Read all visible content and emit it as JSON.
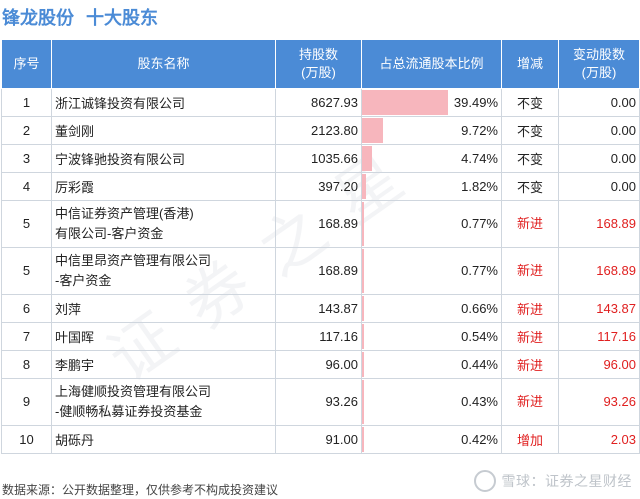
{
  "title": {
    "company": "锋龙股份",
    "section": "十大股东"
  },
  "colors": {
    "header_bg": "#4b8bd6",
    "bar": "#f7b6bd",
    "new_red": "#e02020"
  },
  "columns": [
    "序号",
    "股东名称",
    "持股数\n(万股)",
    "占总流通股本比例",
    "增减",
    "变动股数\n(万股)"
  ],
  "rows": [
    {
      "rank": "1",
      "name": "浙江诚锋投资有限公司",
      "shares": "8627.93",
      "pct": "39.49%",
      "pct_value": 39.49,
      "change": "不变",
      "delta": "0.00"
    },
    {
      "rank": "2",
      "name": "董剑刚",
      "shares": "2123.80",
      "pct": "9.72%",
      "pct_value": 9.72,
      "change": "不变",
      "delta": "0.00"
    },
    {
      "rank": "3",
      "name": "宁波锋驰投资有限公司",
      "shares": "1035.66",
      "pct": "4.74%",
      "pct_value": 4.74,
      "change": "不变",
      "delta": "0.00"
    },
    {
      "rank": "4",
      "name": "厉彩霞",
      "shares": "397.20",
      "pct": "1.82%",
      "pct_value": 1.82,
      "change": "不变",
      "delta": "0.00"
    },
    {
      "rank": "5",
      "name": "中信证券资产管理(香港)\n有限公司-客户资金",
      "shares": "168.89",
      "pct": "0.77%",
      "pct_value": 0.77,
      "change": "新进",
      "delta": "168.89"
    },
    {
      "rank": "5",
      "name": "中信里昂资产管理有限公司\n-客户资金",
      "shares": "168.89",
      "pct": "0.77%",
      "pct_value": 0.77,
      "change": "新进",
      "delta": "168.89"
    },
    {
      "rank": "6",
      "name": "刘萍",
      "shares": "143.87",
      "pct": "0.66%",
      "pct_value": 0.66,
      "change": "新进",
      "delta": "143.87"
    },
    {
      "rank": "7",
      "name": "叶国晖",
      "shares": "117.16",
      "pct": "0.54%",
      "pct_value": 0.54,
      "change": "新进",
      "delta": "117.16"
    },
    {
      "rank": "8",
      "name": "李鹏宇",
      "shares": "96.00",
      "pct": "0.44%",
      "pct_value": 0.44,
      "change": "新进",
      "delta": "96.00"
    },
    {
      "rank": "9",
      "name": "上海健顺投资管理有限公司\n-健顺畅私募证券投资基金",
      "shares": "93.26",
      "pct": "0.43%",
      "pct_value": 0.43,
      "change": "新进",
      "delta": "93.26"
    },
    {
      "rank": "10",
      "name": "胡砾丹",
      "shares": "91.00",
      "pct": "0.42%",
      "pct_value": 0.42,
      "change": "增加",
      "delta": "2.03"
    }
  ],
  "footer": {
    "source": "数据来源：公开数据整理，仅供参考不构成投资建议"
  },
  "brand": {
    "text": "雪球：证券之星财经",
    "icon": "snowball-icon"
  },
  "watermark": {
    "text": "证券之星"
  }
}
